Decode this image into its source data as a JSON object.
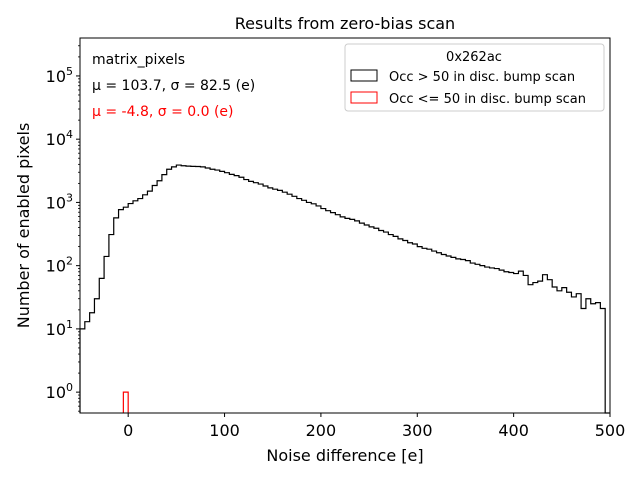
{
  "chart_data": {
    "type": "histogram",
    "title": "Results from zero-bias scan",
    "xlabel": "Noise difference [e]",
    "ylabel": "Number of enabled pixels",
    "xlim": [
      -50,
      500
    ],
    "ylim_log10": [
      -0.33,
      5.6
    ],
    "yscale": "log",
    "x_ticks": [
      0,
      100,
      200,
      300,
      400,
      500
    ],
    "x_tick_labels": [
      "0",
      "100",
      "200",
      "300",
      "400",
      "500"
    ],
    "y_ticks": [
      1,
      10,
      100,
      1000,
      10000,
      100000
    ],
    "y_tick_base": "10",
    "y_tick_exponents": [
      "0",
      "1",
      "2",
      "3",
      "4",
      "5"
    ],
    "annotation_pixels": "matrix_pixels",
    "annotation_black": "μ = 103.7, σ = 82.5 (e)",
    "annotation_red": "μ = -4.8, σ = 0.0 (e)",
    "legend": {
      "title": "0x262ac",
      "position": "top-right",
      "entries": [
        {
          "label": "Occ > 50 in disc. bump scan",
          "color": "#000000"
        },
        {
          "label": "Occ <= 50 in disc. bump scan",
          "color": "#ff0000"
        }
      ]
    },
    "bin_width": 5,
    "series": [
      {
        "name": "Occ > 50 in disc. bump scan",
        "color": "#000000",
        "bin_start": -50,
        "values": [
          10,
          13,
          18,
          30,
          63,
          140,
          310,
          570,
          770,
          840,
          960,
          1060,
          1150,
          1320,
          1510,
          1850,
          2200,
          2750,
          3350,
          3650,
          3900,
          3800,
          3750,
          3720,
          3700,
          3650,
          3500,
          3350,
          3250,
          3100,
          2950,
          2780,
          2650,
          2500,
          2300,
          2150,
          2050,
          1950,
          1820,
          1700,
          1620,
          1550,
          1450,
          1350,
          1250,
          1150,
          1080,
          1000,
          950,
          880,
          800,
          740,
          690,
          640,
          590,
          560,
          540,
          510,
          470,
          440,
          410,
          390,
          360,
          340,
          310,
          290,
          265,
          250,
          230,
          220,
          200,
          188,
          182,
          170,
          160,
          150,
          142,
          135,
          128,
          125,
          120,
          110,
          105,
          100,
          95,
          92,
          90,
          85,
          80,
          78,
          75,
          82,
          70,
          50,
          54,
          57,
          72,
          60,
          46,
          40,
          45,
          38,
          32,
          36,
          21,
          30,
          25,
          26,
          21,
          0
        ]
      },
      {
        "name": "Occ <= 50 in disc. bump scan",
        "color": "#ff0000",
        "bin_start": -5,
        "values": [
          1
        ]
      }
    ]
  }
}
